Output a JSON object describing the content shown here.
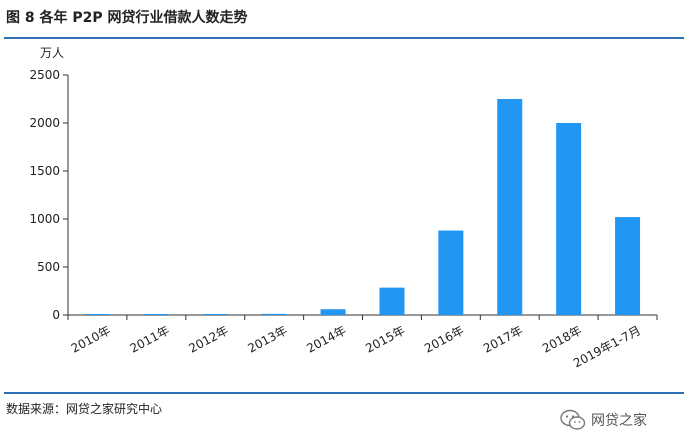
{
  "title": "图 8 各年 P2P 网贷行业借款人数走势",
  "source": "数据来源：网贷之家研究中心",
  "watermark": "网贷之家",
  "icons": {
    "watermark": "wechat-icon"
  },
  "colors": {
    "bar": "#2196f3",
    "rule": "#2e6fb5",
    "axis": "#333333"
  },
  "chart_data": {
    "type": "bar",
    "title": "",
    "xlabel": "",
    "ylabel": "万人",
    "ylim": [
      0,
      2500
    ],
    "yticks": [
      0,
      500,
      1000,
      1500,
      2000,
      2500
    ],
    "grid": false,
    "categories": [
      "2010年",
      "2011年",
      "2012年",
      "2013年",
      "2014年",
      "2015年",
      "2016年",
      "2017年",
      "2018年",
      "2019年1-7月"
    ],
    "values": [
      5,
      8,
      10,
      12,
      60,
      285,
      880,
      2250,
      2000,
      1020
    ]
  }
}
